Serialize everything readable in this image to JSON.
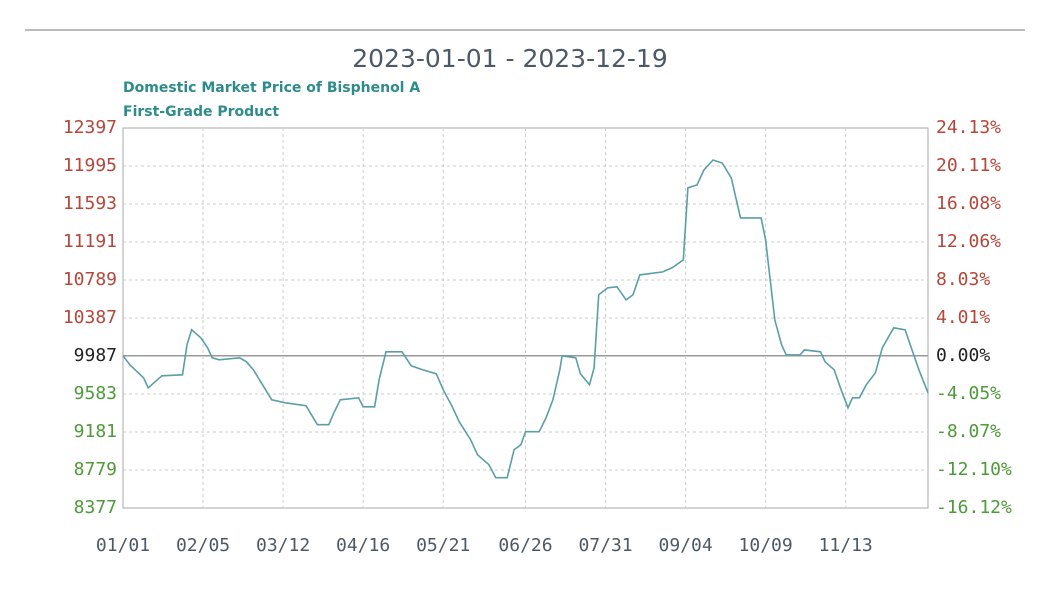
{
  "chart_data": {
    "type": "line",
    "title": "2023-01-01 - 2023-12-19",
    "subtitle": [
      "Domestic Market Price of Bisphenol A",
      "First-Grade Product"
    ],
    "x": [
      "2023-01-01",
      "2023-01-04",
      "2023-01-10",
      "2023-01-12",
      "2023-01-15",
      "2023-01-18",
      "2023-01-27",
      "2023-01-29",
      "2023-01-31",
      "2023-02-04",
      "2023-02-07",
      "2023-02-09",
      "2023-02-12",
      "2023-02-21",
      "2023-02-24",
      "2023-02-27",
      "2023-03-03",
      "2023-03-07",
      "2023-03-13",
      "2023-03-22",
      "2023-03-27",
      "2023-04-01",
      "2023-04-03",
      "2023-04-06",
      "2023-04-14",
      "2023-04-16",
      "2023-04-21",
      "2023-04-23",
      "2023-04-26",
      "2023-05-03",
      "2023-05-07",
      "2023-05-12",
      "2023-05-18",
      "2023-05-21",
      "2023-05-25",
      "2023-05-28",
      "2023-06-02",
      "2023-06-05",
      "2023-06-10",
      "2023-06-13",
      "2023-06-18",
      "2023-06-21",
      "2023-06-24",
      "2023-06-26",
      "2023-07-02",
      "2023-07-05",
      "2023-07-08",
      "2023-07-11",
      "2023-07-12",
      "2023-07-18",
      "2023-07-20",
      "2023-07-24",
      "2023-07-26",
      "2023-07-28",
      "2023-08-01",
      "2023-08-05",
      "2023-08-09",
      "2023-08-12",
      "2023-08-15",
      "2023-08-25",
      "2023-08-29",
      "2023-09-03",
      "2023-09-05",
      "2023-09-09",
      "2023-09-12",
      "2023-09-16",
      "2023-09-20",
      "2023-09-24",
      "2023-09-28",
      "2023-10-07",
      "2023-10-09",
      "2023-10-13",
      "2023-10-16",
      "2023-10-18",
      "2023-10-24",
      "2023-10-26",
      "2023-11-02",
      "2023-11-04",
      "2023-11-08",
      "2023-11-11",
      "2023-11-14",
      "2023-11-16",
      "2023-11-19",
      "2023-11-22",
      "2023-11-26",
      "2023-11-29",
      "2023-12-04",
      "2023-12-09",
      "2023-12-12",
      "2023-12-15",
      "2023-12-19"
    ],
    "series": [
      {
        "color": "#5b9fa6",
        "values": [
          9987,
          9892,
          9754,
          9649,
          9712,
          9776,
          9786,
          10103,
          10262,
          10178,
          10072,
          9966,
          9945,
          9966,
          9924,
          9839,
          9681,
          9522,
          9490,
          9459,
          9258,
          9258,
          9374,
          9522,
          9543,
          9448,
          9448,
          9733,
          10029,
          10029,
          9881,
          9839,
          9797,
          9628,
          9448,
          9290,
          9100,
          8941,
          8835,
          8698,
          8698,
          8994,
          9046,
          9184,
          9184,
          9332,
          9522,
          9839,
          9987,
          9966,
          9797,
          9681,
          9860,
          10632,
          10706,
          10717,
          10579,
          10632,
          10843,
          10875,
          10917,
          11002,
          11763,
          11795,
          11953,
          12059,
          12027,
          11869,
          11446,
          11446,
          11213,
          10367,
          10103,
          9997,
          9997,
          10050,
          10029,
          9924,
          9839,
          9628,
          9437,
          9543,
          9543,
          9681,
          9807,
          10072,
          10283,
          10262,
          10050,
          9839,
          9596
        ]
      }
    ],
    "xlim": [
      "2023-01-01",
      "2023-12-19"
    ],
    "xticks": [
      {
        "value": "2023-01-01",
        "label": "01/01"
      },
      {
        "value": "2023-02-05",
        "label": "02/05"
      },
      {
        "value": "2023-03-12",
        "label": "03/12"
      },
      {
        "value": "2023-04-16",
        "label": "04/16"
      },
      {
        "value": "2023-05-21",
        "label": "05/21"
      },
      {
        "value": "2023-06-26",
        "label": "06/26"
      },
      {
        "value": "2023-07-31",
        "label": "07/31"
      },
      {
        "value": "2023-09-04",
        "label": "09/04"
      },
      {
        "value": "2023-10-09",
        "label": "10/09"
      },
      {
        "value": "2023-11-13",
        "label": "11/13"
      }
    ],
    "ylim": [
      8377,
      12397
    ],
    "yticks": [
      12397,
      11995,
      11593,
      11191,
      10789,
      10387,
      9987,
      9583,
      9181,
      8779,
      8377
    ],
    "y2lim": [
      -16.12,
      24.13
    ],
    "y2ticks": [
      {
        "value": 24.13,
        "label": "24.13%"
      },
      {
        "value": 20.11,
        "label": "20.11%"
      },
      {
        "value": 16.08,
        "label": "16.08%"
      },
      {
        "value": 12.06,
        "label": "12.06%"
      },
      {
        "value": 8.03,
        "label": "8.03%"
      },
      {
        "value": 4.01,
        "label": "4.01%"
      },
      {
        "value": 0,
        "label": "0.00%"
      },
      {
        "value": -4.05,
        "label": "-4.05%"
      },
      {
        "value": -8.07,
        "label": "-8.07%"
      },
      {
        "value": -12.1,
        "label": "-12.10%"
      },
      {
        "value": -16.12,
        "label": "-16.12%"
      }
    ],
    "grid": true,
    "positive_color": "#b5473a",
    "negative_color": "#4f9a3a"
  }
}
